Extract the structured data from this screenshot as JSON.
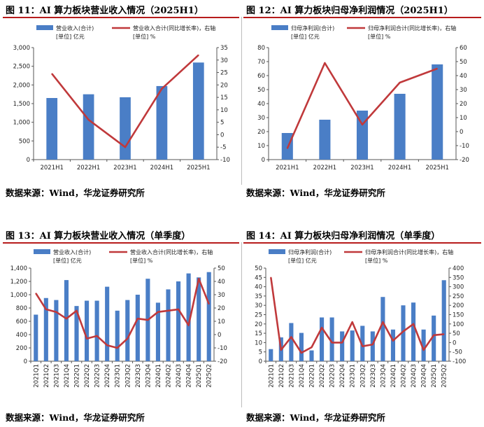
{
  "panels": [
    {
      "title": "图 11：AI 算力板块营业收入情况（2025H1）",
      "source": "数据来源：Wind，华龙证券研究所",
      "legend": {
        "bar": "营业收入(合计)",
        "bar_unit": "[单位] 亿元",
        "line": "营业收入合计(同比增长率)，右轴",
        "line_unit": "[单位] %"
      },
      "chart_data": {
        "type": "bar+line",
        "categories": [
          "2021H1",
          "2022H1",
          "2023H1",
          "2024H1",
          "2025H1"
        ],
        "series": [
          {
            "name": "营业收入(合计)",
            "axis": "left",
            "kind": "bar",
            "values": [
              1650,
              1750,
              1670,
              1970,
              2600
            ]
          },
          {
            "name": "营业收入合计(同比增长率)",
            "axis": "right",
            "kind": "line",
            "values": [
              24.5,
              6,
              -5,
              18.5,
              32
            ]
          }
        ],
        "y_left": {
          "min": 0,
          "max": 3000,
          "step": 500,
          "ticks": [
            "0",
            "500",
            "1,000",
            "1,500",
            "2,000",
            "2,500",
            "3,000"
          ]
        },
        "y_right": {
          "min": -10,
          "max": 35,
          "step": 5,
          "ticks": [
            "-10",
            "-5",
            "0",
            "5",
            "10",
            "15",
            "20",
            "25",
            "30",
            "35"
          ]
        }
      }
    },
    {
      "title": "图 12：AI 算力板块归母净利润情况（2025H1）",
      "source": "数据来源：Wind，华龙证券研究所",
      "legend": {
        "bar": "归母净利润(合计)",
        "bar_unit": "[单位] 亿元",
        "line": "归母净利润合计(同比增长率)，右轴",
        "line_unit": "[单位] %"
      },
      "chart_data": {
        "type": "bar+line",
        "categories": [
          "2021H1",
          "2022H1",
          "2023H1",
          "2024H1",
          "2025H1"
        ],
        "series": [
          {
            "name": "归母净利润(合计)",
            "axis": "left",
            "kind": "bar",
            "values": [
              19,
              28.5,
              35,
              47,
              68
            ]
          },
          {
            "name": "归母净利润合计(同比增长率)",
            "axis": "right",
            "kind": "line",
            "values": [
              -12,
              49,
              5,
              35,
              45
            ]
          }
        ],
        "y_left": {
          "min": 0,
          "max": 80,
          "step": 10,
          "ticks": [
            "0",
            "10",
            "20",
            "30",
            "40",
            "50",
            "60",
            "70",
            "80"
          ]
        },
        "y_right": {
          "min": -20,
          "max": 60,
          "step": 10,
          "ticks": [
            "-20",
            "-10",
            "0",
            "10",
            "20",
            "30",
            "40",
            "50",
            "60"
          ]
        }
      }
    },
    {
      "title": "图 13：AI 算力板块营业收入情况（单季度）",
      "source": "数据来源：Wind，华龙证券研究所",
      "legend": {
        "bar": "营业收入(合计)",
        "bar_unit": "[单位] 亿元",
        "line": "营业收入合计(同比增长率)，右轴",
        "line_unit": "[单位] %"
      },
      "chart_data": {
        "type": "bar+line",
        "categories": [
          "2021Q1",
          "2021Q2",
          "2021Q3",
          "2021Q4",
          "2022Q1",
          "2022Q2",
          "2022Q3",
          "2022Q4",
          "2023Q1",
          "2023Q2",
          "2023Q3",
          "2023Q4",
          "2024Q1",
          "2024Q2",
          "2024Q3",
          "2024Q4",
          "2025Q1",
          "2025Q2"
        ],
        "series": [
          {
            "name": "营业收入(合计)",
            "axis": "left",
            "kind": "bar",
            "values": [
              700,
              950,
              920,
              1220,
              830,
              910,
              910,
              1120,
              760,
              920,
              1000,
              1240,
              880,
              1080,
              1200,
              1320,
              1260,
              1340
            ]
          },
          {
            "name": "营业收入合计(同比增长率)",
            "axis": "right",
            "kind": "line",
            "values": [
              31,
              19,
              17,
              12,
              18,
              -3,
              -1,
              -8,
              -10,
              -3,
              12,
              11,
              17,
              18,
              19,
              7,
              42,
              23
            ]
          }
        ],
        "y_left": {
          "min": 0,
          "max": 1400,
          "step": 200,
          "ticks": [
            "0",
            "200",
            "400",
            "600",
            "800",
            "1,000",
            "1,200",
            "1,400"
          ]
        },
        "y_right": {
          "min": -20,
          "max": 50,
          "step": 10,
          "ticks": [
            "-20",
            "-10",
            "0",
            "10",
            "20",
            "30",
            "40",
            "50"
          ]
        }
      }
    },
    {
      "title": "图 14：AI 算力板块归母净利润情况（单季度）",
      "source": "数据来源：Wind，华龙证券研究所",
      "legend": {
        "bar": "归母净利润(合计)",
        "bar_unit": "[单位] 亿元",
        "line": "归母净利润合计(同比增长率)，右轴",
        "line_unit": "[单位] %"
      },
      "chart_data": {
        "type": "bar+line",
        "categories": [
          "2021Q1",
          "2021Q2",
          "2021Q3",
          "2021Q4",
          "2022Q1",
          "2022Q2",
          "2022Q3",
          "2022Q4",
          "2023Q1",
          "2023Q2",
          "2023Q3",
          "2023Q4",
          "2024Q1",
          "2024Q2",
          "2024Q3",
          "2024Q4",
          "2025Q1",
          "2025Q2"
        ],
        "series": [
          {
            "name": "归母净利润(合计)",
            "axis": "left",
            "kind": "bar",
            "values": [
              6.5,
              12.8,
              20.5,
              15.2,
              5.8,
              23.5,
              23.5,
              16,
              16.5,
              19,
              16,
              34.5,
              17,
              30,
              31.5,
              17,
              24.5,
              43.5
            ]
          },
          {
            "name": "归母净利润合计(同比增长率)",
            "axis": "right",
            "kind": "line",
            "values": [
              350,
              -40,
              30,
              -55,
              -25,
              80,
              0,
              0,
              110,
              -20,
              -10,
              110,
              10,
              60,
              100,
              -40,
              40,
              45
            ]
          }
        ],
        "y_left": {
          "min": 0,
          "max": 50,
          "step": 5,
          "ticks": [
            "0",
            "5",
            "10",
            "15",
            "20",
            "25",
            "30",
            "35",
            "40",
            "45",
            "50"
          ]
        },
        "y_right": {
          "min": -100,
          "max": 400,
          "step": 50,
          "ticks": [
            "-100",
            "-50",
            "0",
            "50",
            "100",
            "150",
            "200",
            "250",
            "300",
            "350",
            "400"
          ]
        }
      }
    }
  ],
  "colors": {
    "bar": "#4a7ec6",
    "line": "#c0393b",
    "accent": "#b71c1c",
    "axis": "#555555"
  }
}
